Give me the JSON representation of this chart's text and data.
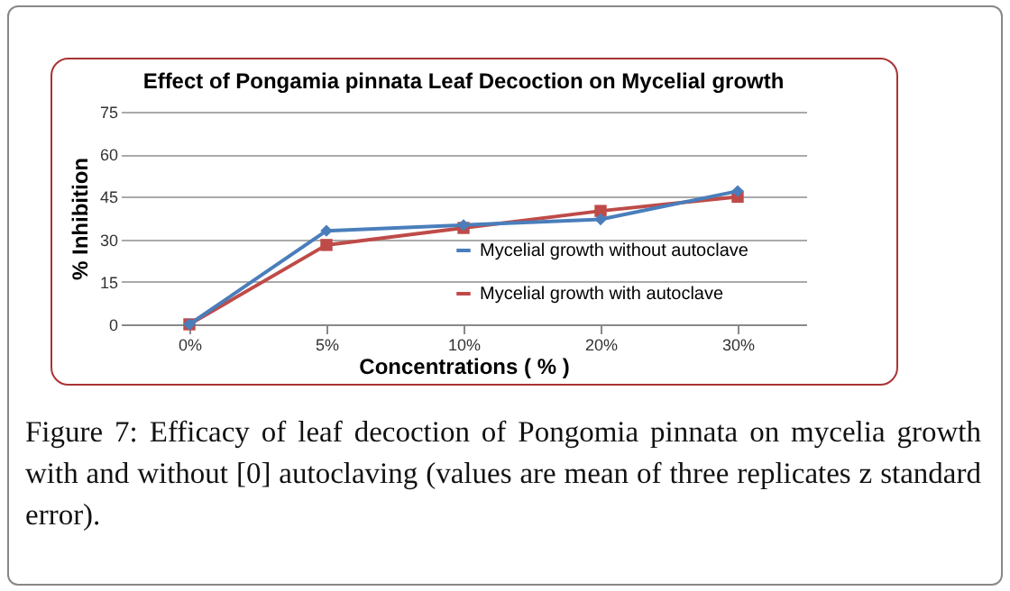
{
  "chart_data": {
    "type": "line",
    "title": "Effect of Pongamia pinnata Leaf Decoction on Mycelial growth",
    "xlabel": "Concentrations ( % )",
    "ylabel": "% Inhibition",
    "categories": [
      "0%",
      "5%",
      "10%",
      "20%",
      "30%"
    ],
    "series": [
      {
        "name": "Mycelial growth without autoclave",
        "color": "#4a7ebb",
        "marker": "diamond",
        "values": [
          0,
          33,
          35,
          37,
          47
        ]
      },
      {
        "name": "Mycelial growth with autoclave",
        "color": "#be4b48",
        "marker": "square",
        "values": [
          0,
          28,
          34,
          40,
          45
        ]
      }
    ],
    "ylim": [
      0,
      75
    ],
    "yticks": [
      0,
      15,
      30,
      45,
      60,
      75
    ],
    "grid": "y",
    "legend": "right",
    "line_style": "solid",
    "annotations": [
      "Figure 7: Efficacy of leaf decoction of Pongomia pinnata on mycelia growth with and without [0] autoclaving (values are mean of three replicates z standard error)."
    ]
  }
}
